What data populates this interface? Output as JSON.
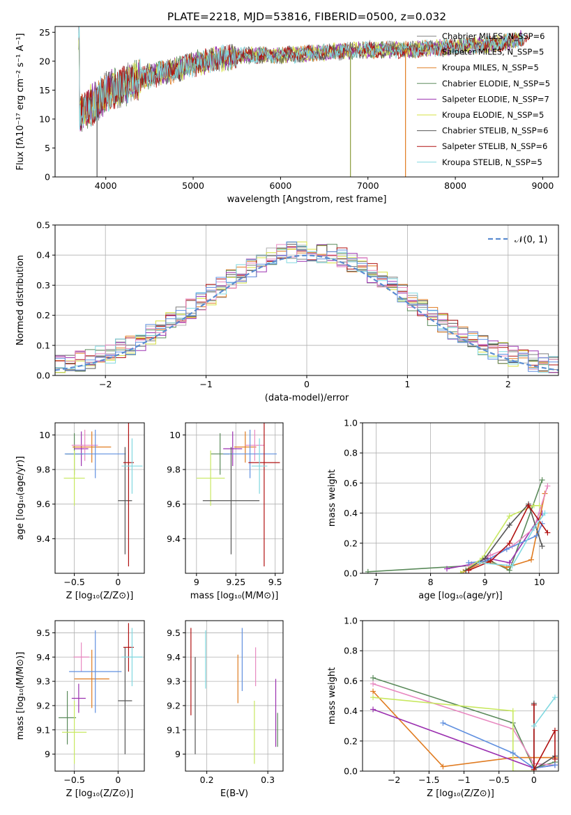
{
  "figure_title": "PLATE=2218, MJD=53816, FIBERID=0500, z=0.032",
  "model_colors": [
    "#7f7f7f",
    "#b0b0b0",
    "#e07b20",
    "#5a8a5a",
    "#9b30b0",
    "#d6e040",
    "#555555",
    "#b01010",
    "#80d8e0"
  ],
  "chart_data": [
    {
      "id": "spectrum",
      "type": "line",
      "title": "PLATE=2218, MJD=53816, FIBERID=0500, z=0.032",
      "xlabel": "wavelength [Angstrom, rest frame]",
      "ylabel": "Flux [fλ10⁻¹⁷ erg cm⁻² s⁻¹ A⁻¹]",
      "xlim": [
        3420,
        9180
      ],
      "ylim": [
        0,
        26
      ],
      "xticks": [
        4000,
        5000,
        6000,
        7000,
        8000,
        9000
      ],
      "yticks": [
        0,
        5,
        10,
        15,
        20,
        25
      ],
      "legend_position": "top-right",
      "legend": [
        "Chabrier MILES, N_SSP=6",
        "Salpeter MILES, N_SSP=5",
        "Kroupa MILES, N_SSP=5",
        "Chabrier ELODIE, N_SSP=5",
        "Salpeter ELODIE, N_SSP=7",
        "Kroupa ELODIE, N_SSP=5",
        "Chabrier STELIB, N_SSP=6",
        "Salpeter STELIB, N_SSP=6",
        "Kroupa STELIB, N_SSP=5"
      ],
      "continuum": {
        "x": [
          3700,
          3800,
          3900,
          4000,
          4100,
          4200,
          4300,
          4500,
          4800,
          5000,
          5500,
          6000,
          6500,
          7000,
          7500,
          8000,
          8500,
          8800
        ],
        "y": [
          10.5,
          12,
          13,
          14.5,
          15.5,
          15.5,
          16.5,
          17.5,
          18.5,
          19.5,
          21,
          21,
          21.5,
          22,
          22,
          22.5,
          23,
          24
        ]
      },
      "dropouts": [
        {
          "x": 3900,
          "y": 0,
          "color": "#555555"
        },
        {
          "x": 6800,
          "y": 0,
          "color": "#8a9a3a"
        },
        {
          "x": 7430,
          "y": 0,
          "color": "#e07b20"
        }
      ]
    },
    {
      "id": "residuals",
      "type": "bar",
      "xlabel": "(data-model)/error",
      "ylabel": "Normed distribution",
      "xlim": [
        -2.5,
        2.5
      ],
      "ylim": [
        0,
        0.5
      ],
      "xticks": [
        -2,
        -1,
        0,
        1,
        2
      ],
      "yticks": [
        0.0,
        0.1,
        0.2,
        0.3,
        0.4,
        0.5
      ],
      "grid": true,
      "legend_position": "top-right",
      "legend": [
        "𝒩(0, 1)"
      ],
      "bin_width": 0.1
    },
    {
      "id": "age-vs-Z",
      "type": "scatter",
      "xlabel": "Z [log₁₀(Z/Z⊙)]",
      "ylabel": "age  [log₁₀(age/yr)]",
      "xlim": [
        -0.72,
        0.3
      ],
      "ylim": [
        9.2,
        10.07
      ],
      "xticks": [
        -0.5,
        0.0
      ],
      "yticks": [
        9.4,
        9.6,
        9.8,
        10.0
      ],
      "grid": true,
      "points": [
        {
          "x": -0.5,
          "y": 9.89,
          "xerr": 0.1,
          "yerr": 0.12,
          "color": "#5a8a5a"
        },
        {
          "x": -0.42,
          "y": 9.92,
          "xerr": 0.08,
          "yerr": 0.1,
          "color": "#9b30b0"
        },
        {
          "x": -0.3,
          "y": 9.93,
          "xerr": 0.22,
          "yerr": 0.09,
          "color": "#e07b20"
        },
        {
          "x": -0.38,
          "y": 9.94,
          "xerr": 0.15,
          "yerr": 0.09,
          "color": "#e888c0"
        },
        {
          "x": -0.26,
          "y": 9.89,
          "xerr": 0.35,
          "yerr": 0.14,
          "color": "#6090e0"
        },
        {
          "x": -0.5,
          "y": 9.75,
          "xerr": 0.12,
          "yerr": 0.16,
          "color": "#c8e860"
        },
        {
          "x": 0.08,
          "y": 9.62,
          "xerr": 0.08,
          "yerr": 0.31,
          "color": "#555555"
        },
        {
          "x": 0.12,
          "y": 9.84,
          "xerr": 0.06,
          "yerr": 0.6,
          "color": "#b01010"
        },
        {
          "x": 0.16,
          "y": 9.82,
          "xerr": 0.12,
          "yerr": 0.16,
          "color": "#80d8e0"
        }
      ]
    },
    {
      "id": "age-vs-mass",
      "type": "scatter",
      "xlabel": "mass [log₁₀(M/M⊙)]",
      "ylabel": "",
      "xlim": [
        8.93,
        9.55
      ],
      "ylim": [
        9.2,
        10.07
      ],
      "xticks": [
        9.0,
        9.25,
        9.5
      ],
      "yticks": [
        9.4,
        9.6,
        9.8,
        10.0
      ],
      "grid": true,
      "points": [
        {
          "x": 9.15,
          "y": 9.89,
          "xerr": 0.06,
          "yerr": 0.12,
          "color": "#5a8a5a"
        },
        {
          "x": 9.23,
          "y": 9.92,
          "xerr": 0.06,
          "yerr": 0.1,
          "color": "#9b30b0"
        },
        {
          "x": 9.31,
          "y": 9.93,
          "xerr": 0.07,
          "yerr": 0.09,
          "color": "#e07b20"
        },
        {
          "x": 9.37,
          "y": 9.94,
          "xerr": 0.06,
          "yerr": 0.09,
          "color": "#e888c0"
        },
        {
          "x": 9.34,
          "y": 9.89,
          "xerr": 0.17,
          "yerr": 0.14,
          "color": "#6090e0"
        },
        {
          "x": 9.09,
          "y": 9.75,
          "xerr": 0.09,
          "yerr": 0.16,
          "color": "#c8e860"
        },
        {
          "x": 9.22,
          "y": 9.62,
          "xerr": 0.18,
          "yerr": 0.31,
          "color": "#555555"
        },
        {
          "x": 9.43,
          "y": 9.84,
          "xerr": 0.1,
          "yerr": 0.6,
          "color": "#b01010"
        },
        {
          "x": 9.4,
          "y": 9.82,
          "xerr": 0.05,
          "yerr": 0.16,
          "color": "#80d8e0"
        }
      ]
    },
    {
      "id": "mass-weight-vs-age",
      "type": "line",
      "xlabel": "age  [log₁₀(age/yr)]",
      "ylabel": "mass weight",
      "xlim": [
        6.75,
        10.35
      ],
      "ylim": [
        0,
        1
      ],
      "xticks": [
        7,
        8,
        9,
        10
      ],
      "yticks": [
        0.0,
        0.2,
        0.4,
        0.6,
        0.8,
        1.0
      ],
      "grid": true,
      "series": [
        {
          "color": "#5a8a5a",
          "x": [
            6.85,
            8.7,
            9.0,
            9.45,
            10.05
          ],
          "y": [
            0.01,
            0.05,
            0.1,
            0.02,
            0.62
          ]
        },
        {
          "color": "#9b30b0",
          "x": [
            8.3,
            8.75,
            9.05,
            9.45,
            10.05
          ],
          "y": [
            0.03,
            0.06,
            0.1,
            0.07,
            0.4
          ]
        },
        {
          "color": "#e07b20",
          "x": [
            8.6,
            9.0,
            9.4,
            9.85,
            10.1
          ],
          "y": [
            0.01,
            0.08,
            0.04,
            0.09,
            0.53
          ]
        },
        {
          "color": "#e888c0",
          "x": [
            8.7,
            9.1,
            9.5,
            9.9,
            10.15
          ],
          "y": [
            0.05,
            0.12,
            0.18,
            0.3,
            0.58
          ]
        },
        {
          "color": "#6090e0",
          "x": [
            8.7,
            9.0,
            9.4,
            9.95,
            10.05
          ],
          "y": [
            0.07,
            0.08,
            0.16,
            0.25,
            0.33
          ]
        },
        {
          "color": "#c8e860",
          "x": [
            8.55,
            8.95,
            9.45,
            9.9,
            10.0
          ],
          "y": [
            0.0,
            0.1,
            0.38,
            0.45,
            0.45
          ]
        },
        {
          "color": "#555555",
          "x": [
            8.65,
            9.0,
            9.45,
            9.8,
            10.05
          ],
          "y": [
            0.02,
            0.1,
            0.32,
            0.46,
            0.18
          ]
        },
        {
          "color": "#b01010",
          "x": [
            8.7,
            9.1,
            9.45,
            9.8,
            10.15
          ],
          "y": [
            0.02,
            0.08,
            0.2,
            0.45,
            0.27
          ]
        },
        {
          "color": "#80d8e0",
          "x": [
            8.9,
            9.5,
            9.9,
            10.1
          ],
          "y": [
            0.07,
            0.05,
            0.3,
            0.4
          ]
        }
      ]
    },
    {
      "id": "mass-vs-Z",
      "type": "scatter",
      "xlabel": "Z [log₁₀(Z/Z⊙)]",
      "ylabel": "mass [log₁₀(M/M⊙)]",
      "xlim": [
        -0.72,
        0.3
      ],
      "ylim": [
        8.93,
        9.55
      ],
      "xticks": [
        -0.5,
        0.0
      ],
      "yticks": [
        9.0,
        9.1,
        9.2,
        9.3,
        9.4,
        9.5
      ],
      "grid": true,
      "points": [
        {
          "x": -0.58,
          "y": 9.15,
          "xerr": 0.1,
          "yerr": 0.11,
          "color": "#5a8a5a"
        },
        {
          "x": -0.5,
          "y": 9.09,
          "xerr": 0.14,
          "yerr": 0.13,
          "color": "#c8e860"
        },
        {
          "x": -0.45,
          "y": 9.23,
          "xerr": 0.08,
          "yerr": 0.06,
          "color": "#9b30b0"
        },
        {
          "x": -0.42,
          "y": 9.4,
          "xerr": 0.09,
          "yerr": 0.06,
          "color": "#e888c0"
        },
        {
          "x": -0.3,
          "y": 9.31,
          "xerr": 0.2,
          "yerr": 0.12,
          "color": "#e07b20"
        },
        {
          "x": -0.26,
          "y": 9.34,
          "xerr": 0.3,
          "yerr": 0.17,
          "color": "#6090e0"
        },
        {
          "x": 0.08,
          "y": 9.22,
          "xerr": 0.08,
          "yerr": 0.22,
          "color": "#555555"
        },
        {
          "x": 0.12,
          "y": 9.44,
          "xerr": 0.06,
          "yerr": 0.1,
          "color": "#b01010"
        },
        {
          "x": 0.16,
          "y": 9.4,
          "xerr": 0.12,
          "yerr": 0.12,
          "color": "#80d8e0"
        }
      ]
    },
    {
      "id": "mass-vs-EBV",
      "type": "scatter",
      "xlabel": "E(B-V)",
      "ylabel": "",
      "xlim": [
        0.165,
        0.325
      ],
      "ylim": [
        8.93,
        9.55
      ],
      "xticks": [
        0.2,
        0.3
      ],
      "yticks": [
        9.0,
        9.1,
        9.2,
        9.3,
        9.4,
        9.5
      ],
      "grid": true,
      "points": [
        {
          "x": 0.174,
          "y": 9.34,
          "yerr": 0.18,
          "color": "#b01010"
        },
        {
          "x": 0.181,
          "y": 9.2,
          "yerr": 0.2,
          "color": "#555555"
        },
        {
          "x": 0.198,
          "y": 9.39,
          "yerr": 0.12,
          "color": "#80d8e0"
        },
        {
          "x": 0.251,
          "y": 9.31,
          "yerr": 0.1,
          "color": "#e07b20"
        },
        {
          "x": 0.258,
          "y": 9.39,
          "yerr": 0.13,
          "color": "#6090e0"
        },
        {
          "x": 0.278,
          "y": 9.09,
          "yerr": 0.13,
          "color": "#c8e860"
        },
        {
          "x": 0.28,
          "y": 9.36,
          "yerr": 0.08,
          "color": "#e888c0"
        },
        {
          "x": 0.313,
          "y": 9.17,
          "yerr": 0.14,
          "color": "#9b30b0"
        },
        {
          "x": 0.316,
          "y": 9.1,
          "yerr": 0.07,
          "color": "#5a8a5a"
        }
      ]
    },
    {
      "id": "mass-weight-vs-Z",
      "type": "line",
      "xlabel": "Z [log₁₀(Z/Z⊙)]",
      "ylabel": "mass weight",
      "xlim": [
        -2.45,
        0.35
      ],
      "ylim": [
        0,
        1
      ],
      "xticks": [
        -2.0,
        -1.5,
        -1.0,
        -0.5,
        0.0
      ],
      "yticks": [
        0.0,
        0.2,
        0.4,
        0.6,
        0.8,
        1.0
      ],
      "grid": true,
      "series": [
        {
          "color": "#5a8a5a",
          "x": [
            -2.3,
            -0.3,
            0.0,
            0.3
          ],
          "y": [
            0.62,
            0.32,
            0.02,
            0.06
          ]
        },
        {
          "color": "#e888c0",
          "x": [
            -2.3,
            -0.3,
            0.0,
            0.3
          ],
          "y": [
            0.58,
            0.28,
            0.05,
            0.04
          ]
        },
        {
          "color": "#e07b20",
          "x": [
            -2.3,
            -1.3,
            -0.3,
            0.0,
            0.3
          ],
          "y": [
            0.53,
            0.03,
            0.09,
            0.09,
            0.09
          ]
        },
        {
          "color": "#c8e860",
          "x": [
            -2.3,
            -0.3,
            -0.3,
            0.0
          ],
          "y": [
            0.49,
            0.4,
            0.0,
            0.0
          ]
        },
        {
          "color": "#9b30b0",
          "x": [
            -2.3,
            0.0,
            0.3
          ],
          "y": [
            0.41,
            0.02,
            0.04
          ]
        },
        {
          "color": "#6090e0",
          "x": [
            -1.3,
            -0.3,
            0.0,
            0.3
          ],
          "y": [
            0.32,
            0.12,
            0.02,
            0.04
          ]
        },
        {
          "color": "#555555",
          "x": [
            0.0,
            0.0,
            0.3
          ],
          "y": [
            0.45,
            0.01,
            0.1
          ]
        },
        {
          "color": "#b01010",
          "x": [
            0.0,
            0.0,
            0.3,
            0.3
          ],
          "y": [
            0.44,
            0.01,
            0.27,
            0.08
          ]
        },
        {
          "color": "#80d8e0",
          "x": [
            0.0,
            0.3
          ],
          "y": [
            0.3,
            0.49
          ]
        }
      ]
    }
  ]
}
